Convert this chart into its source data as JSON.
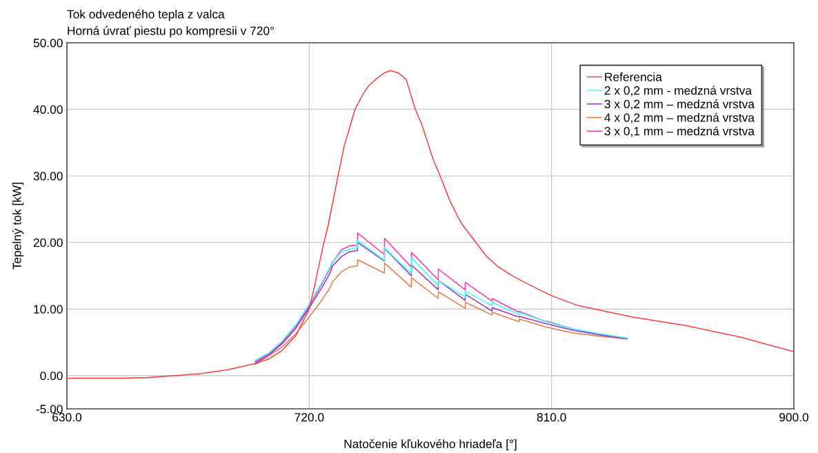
{
  "chart_data": {
    "type": "line",
    "title": "Tok odvedeného tepla z valca",
    "subtitle": "Horná úvrať piestu po kompresii v 720°",
    "xlabel": "Natočenie kľukového hriadeľa [°]",
    "ylabel": "Tepelný tok [kW]",
    "xlim": [
      630,
      900
    ],
    "xticks": [
      {
        "value": 630,
        "label": "630.0"
      },
      {
        "value": 720,
        "label": "720.0"
      },
      {
        "value": 810,
        "label": "810.0"
      },
      {
        "value": 900,
        "label": "900.0"
      }
    ],
    "ylim": [
      -5,
      50
    ],
    "yticks": [
      {
        "value": -5,
        "label": "-5.00"
      },
      {
        "value": 0,
        "label": "0.00"
      },
      {
        "value": 10,
        "label": "10.00"
      },
      {
        "value": 20,
        "label": "20.00"
      },
      {
        "value": 30,
        "label": "30.00"
      },
      {
        "value": 40,
        "label": "40.00"
      },
      {
        "value": 50,
        "label": "50.00"
      }
    ],
    "grid": true,
    "legend": "top right",
    "line_style": "solid",
    "marker": "none",
    "series": [
      {
        "name": "Referencia",
        "color": "#ff3b3b",
        "x": [
          630,
          650,
          660,
          670,
          680,
          690,
          700,
          705,
          710,
          715,
          720,
          722,
          725,
          727,
          730.7,
          733,
          737,
          740,
          742,
          745,
          748,
          750,
          753,
          756,
          759.4,
          762,
          764,
          766,
          768.6,
          772,
          775,
          777,
          780,
          785.7,
          790,
          795,
          800,
          810,
          820,
          840,
          860,
          880,
          900
        ],
        "values": [
          -0.4,
          -0.4,
          -0.3,
          0.0,
          0.3,
          0.9,
          1.8,
          2.5,
          3.8,
          6.0,
          10.0,
          13.5,
          19.2,
          22.5,
          30,
          34.5,
          40,
          42.3,
          43.5,
          44.6,
          45.5,
          45.8,
          45.5,
          44.5,
          40,
          37.5,
          35,
          32.5,
          30,
          26.5,
          24,
          22.6,
          21,
          18,
          16.4,
          15.1,
          14,
          12,
          10.5,
          8.8,
          7.5,
          5.8,
          3.6
        ]
      },
      {
        "name": "2 x 0,2 mm - medzná vrstva",
        "color": "#33ffff",
        "x": [
          700,
          705,
          710,
          715,
          720,
          725,
          728,
          728.5,
          732,
          735,
          737.9,
          738,
          747.9,
          748,
          757.9,
          758,
          767.9,
          768,
          777.9,
          778,
          787.9,
          788,
          797.9,
          798,
          808,
          818,
          828,
          838
        ],
        "values": [
          2.3,
          3.4,
          5.2,
          7.6,
          10.7,
          14.2,
          16.5,
          17.0,
          18.6,
          19.0,
          19.2,
          20.3,
          17.3,
          19.2,
          15.3,
          17.7,
          13.5,
          14.3,
          11.8,
          12.7,
          10.5,
          11.0,
          9.2,
          9.5,
          8.1,
          7.0,
          6.3,
          5.65
        ]
      },
      {
        "name": "3 x 0,2 mm – medzná vrstva",
        "color": "#9933cc",
        "x": [
          700,
          705,
          710,
          715,
          720,
          725,
          728,
          728.5,
          732,
          735,
          737.9,
          738,
          747.9,
          748,
          757.9,
          758,
          767.9,
          768,
          777.9,
          778,
          787.9,
          788,
          797.9,
          798,
          808,
          818,
          828,
          838
        ],
        "values": [
          1.9,
          3.1,
          4.8,
          7.1,
          10.2,
          13.4,
          15.6,
          16.4,
          17.9,
          18.6,
          18.8,
          20.0,
          17.2,
          19.1,
          15.0,
          16.6,
          12.9,
          14.3,
          11.3,
          12.2,
          9.7,
          10.2,
          8.8,
          8.9,
          7.8,
          6.8,
          6.1,
          5.55
        ]
      },
      {
        "name": "4 x 0,2 mm – medzná vrstva",
        "color": "#ee7744",
        "x": [
          700,
          705,
          710,
          715,
          720,
          725,
          728,
          728.5,
          732,
          735,
          737.9,
          738,
          747.9,
          748,
          757.9,
          758,
          767.9,
          768,
          777.9,
          778,
          787.9,
          788,
          797.9,
          798,
          808,
          818,
          828,
          838
        ],
        "values": [
          1.7,
          3.0,
          4.3,
          6.3,
          8.8,
          11.5,
          13.4,
          14.0,
          15.6,
          16.3,
          16.5,
          17.4,
          15.4,
          16.9,
          13.3,
          14.7,
          11.6,
          12.6,
          10.1,
          11.0,
          9.1,
          9.5,
          8.1,
          8.5,
          7.3,
          6.4,
          5.9,
          5.5
        ]
      },
      {
        "name": "3 x 0,1 mm – medzná vrstva",
        "color": "#ff33aa",
        "x": [
          700,
          705,
          710,
          715,
          720,
          725,
          728,
          728.5,
          732,
          735,
          737.9,
          738,
          747.9,
          748,
          757.9,
          758,
          767.9,
          768,
          777.9,
          778,
          787.9,
          788,
          797.9,
          798,
          807.9,
          808,
          818,
          828,
          838
        ],
        "values": [
          2.1,
          3.3,
          5.0,
          7.4,
          10.5,
          14.0,
          16.3,
          16.9,
          18.9,
          19.5,
          19.6,
          21.4,
          18.2,
          20.6,
          16.3,
          18.5,
          14.4,
          16.0,
          12.9,
          14.0,
          11.2,
          11.6,
          9.5,
          9.65,
          8.1,
          8.2,
          7.0,
          6.1,
          5.55
        ]
      }
    ]
  }
}
